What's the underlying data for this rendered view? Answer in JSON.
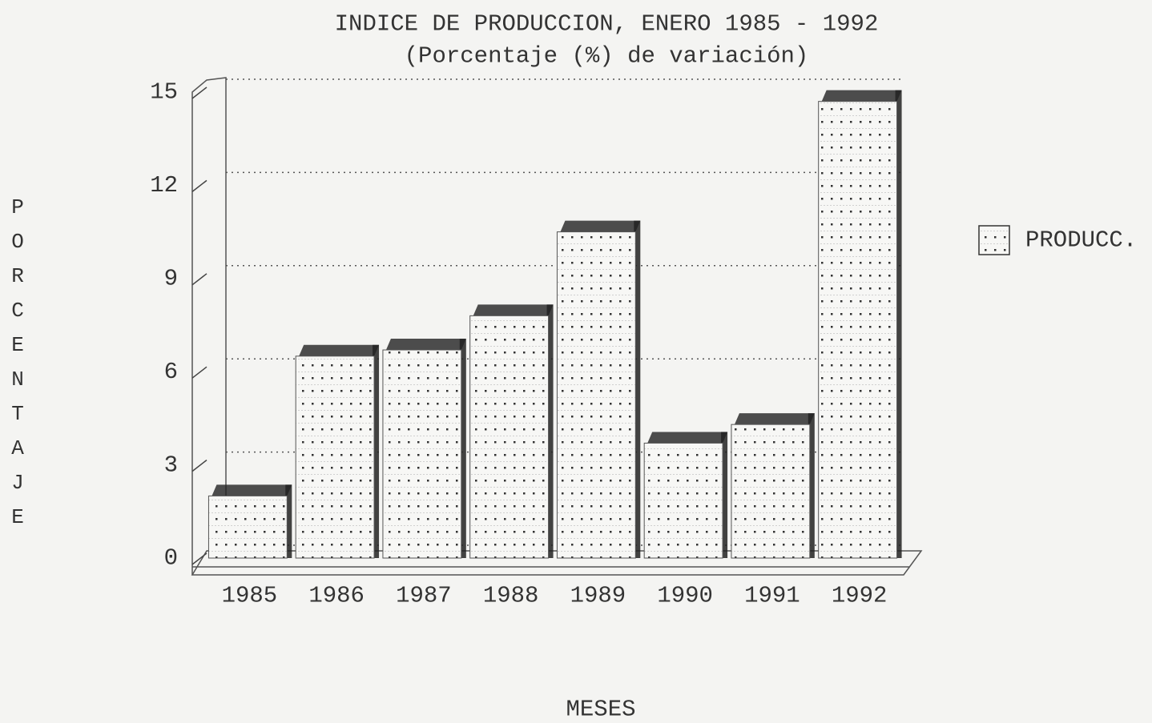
{
  "chart_data": {
    "type": "bar",
    "title": "INDICE DE PRODUCCION, ENERO 1985 - 1992",
    "subtitle": "(Porcentaje (%) de variación)",
    "y_label": "PORCENTAJE",
    "x_label": "MESES",
    "categories": [
      "1985",
      "1986",
      "1987",
      "1988",
      "1989",
      "1990",
      "1991",
      "1992"
    ],
    "series": [
      {
        "name": "PRODUCC.",
        "color": "#222222",
        "values": [
          2.0,
          6.5,
          6.7,
          7.8,
          10.5,
          3.7,
          4.3,
          14.7
        ]
      }
    ],
    "ylim": [
      0,
      15
    ],
    "yticks": [
      0,
      3,
      6,
      9,
      12,
      15
    ],
    "grid": true,
    "legend": "right"
  }
}
